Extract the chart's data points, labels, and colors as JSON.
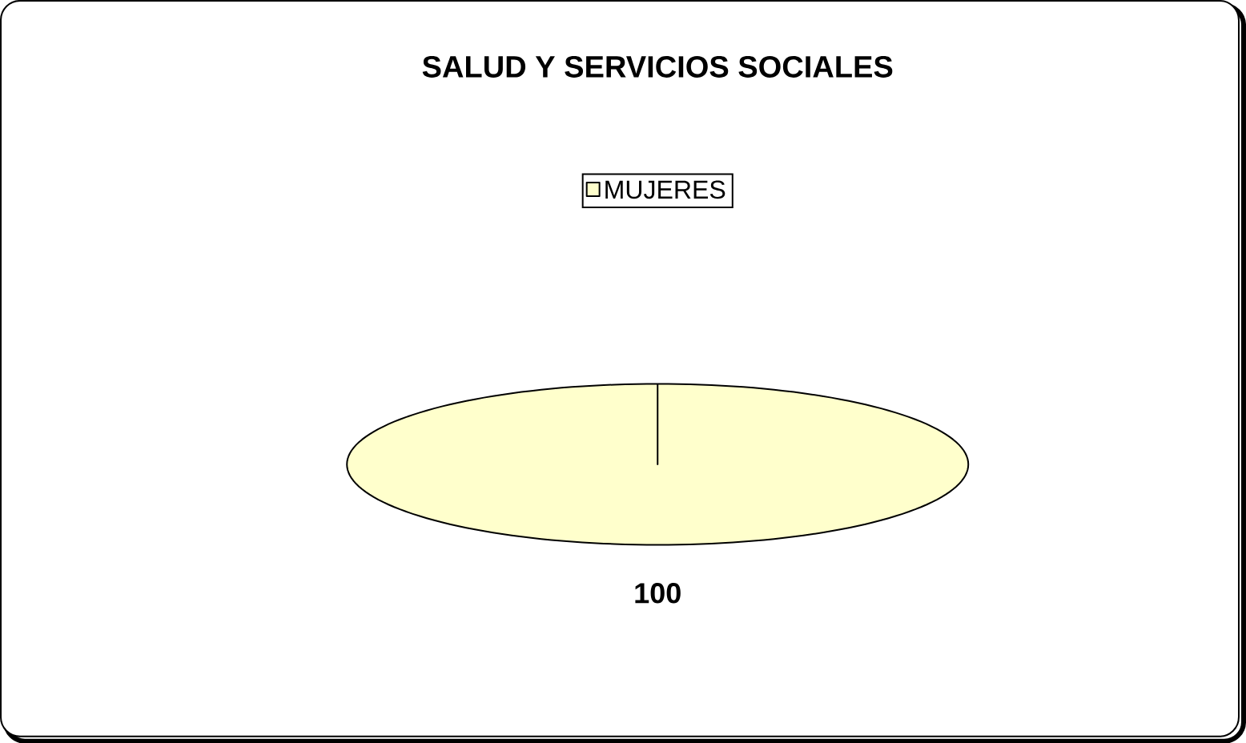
{
  "chart_data": {
    "type": "pie",
    "title": "SALUD Y SERVICIOS SOCIALES",
    "categories": [
      "MUJERES"
    ],
    "values": [
      100
    ],
    "colors": [
      "#ffffcc"
    ],
    "legend": "top",
    "data_labels": true
  }
}
